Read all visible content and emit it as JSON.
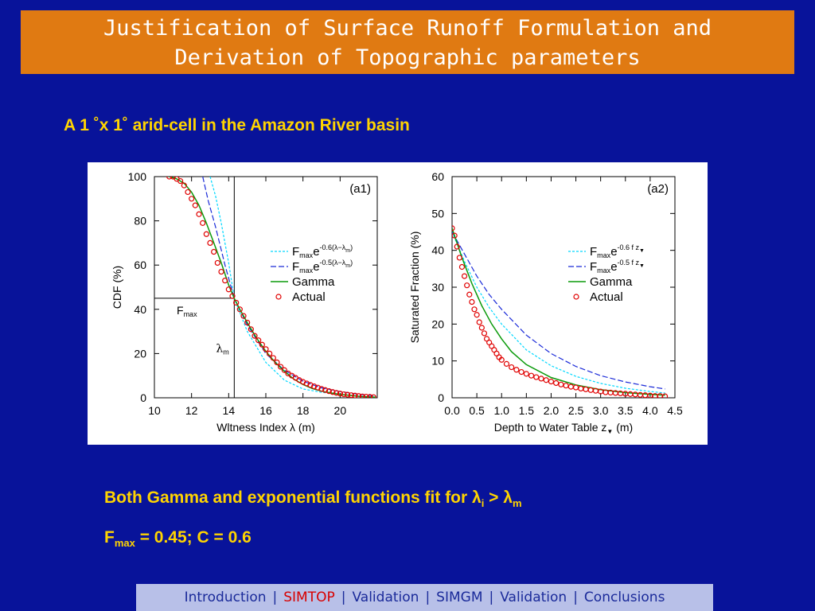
{
  "title": {
    "line1": "Justification of Surface Runoff Formulation and",
    "line2": "Derivation of Topographic parameters"
  },
  "subtitle": "A 1 ˚x 1˚ arid-cell in the Amazon River basin",
  "notes": {
    "line1_prefix": "Both Gamma and exponential functions fit for λ",
    "line1_sub1": "i",
    "line1_mid": " > λ",
    "line1_sub2": "m",
    "line2_prefix": "F",
    "line2_sub": "max",
    "line2_suffix": " = 0.45; C = 0.6"
  },
  "nav": {
    "items": [
      "Introduction",
      "SIMTOP",
      "Validation",
      "SIMGM",
      "Validation",
      "Conclusions"
    ],
    "active_index": 1,
    "separator": "|"
  },
  "colors": {
    "background": "#08139a",
    "title_bar": "#e07a12",
    "accent_text": "#ffd400",
    "exp06": "#00d8ff",
    "exp05": "#1a2ad8",
    "gamma": "#0a9a0a",
    "actual": "#e00000"
  },
  "chart_data": [
    {
      "type": "line",
      "panel_label": "(a1)",
      "xlabel": "Wltness Index λ (m)",
      "ylabel": "CDF (%)",
      "xlim": [
        10,
        22
      ],
      "ylim": [
        0,
        100
      ],
      "xticks": [
        10,
        12,
        14,
        16,
        18,
        20
      ],
      "yticks": [
        0,
        20,
        40,
        60,
        80,
        100
      ],
      "grid": false,
      "legend_position": "center-right",
      "legend": [
        {
          "key": "exp06",
          "text": "F",
          "sub": "max",
          "tail": "e",
          "sup": "-0.6(λ−λ",
          "supsub": "m",
          "supend": ")"
        },
        {
          "key": "exp05",
          "text": "F",
          "sub": "max",
          "tail": "e",
          "sup": "-0.5(λ−λ",
          "supsub": "m",
          "supend": ")"
        },
        {
          "key": "gamma",
          "text": "Gamma"
        },
        {
          "key": "actual",
          "text": "Actual"
        }
      ],
      "annotations": {
        "fmax_label": "F",
        "fmax_sub": "max",
        "lambda_label": "λ",
        "lambda_sub": "m",
        "fmax_value": 45,
        "lambda_m": 14.3
      },
      "series": [
        {
          "name": "Fmaxe-0.6(λ−λm)",
          "key": "exp06",
          "x": [
            13.0,
            13.3,
            13.6,
            14.0,
            14.3,
            15.0,
            16.0,
            17.0,
            18.0,
            19.0,
            20.0,
            21.0,
            21.9
          ],
          "y": [
            100,
            91,
            79,
            61,
            45,
            30,
            16,
            8,
            4,
            2.5,
            1.5,
            0.8,
            0.4
          ]
        },
        {
          "name": "Fmaxe-0.5(λ−λm)",
          "key": "exp05",
          "x": [
            12.6,
            12.9,
            13.3,
            13.8,
            14.3,
            15.0,
            16.0,
            17.0,
            18.0,
            19.0,
            20.0,
            21.0,
            21.9
          ],
          "y": [
            100,
            89,
            77,
            60,
            45,
            33,
            20,
            12.5,
            7.5,
            4.5,
            2.8,
            1.6,
            0.9
          ]
        },
        {
          "name": "Gamma",
          "key": "gamma",
          "x": [
            10.8,
            11.2,
            11.6,
            12.0,
            12.4,
            12.8,
            13.2,
            13.6,
            14.0,
            14.3,
            14.6,
            15.0,
            15.5,
            16.0,
            16.5,
            17.0,
            17.5,
            18.0,
            18.5,
            19.0,
            19.5,
            20.0,
            21.0,
            21.9
          ],
          "y": [
            100,
            99,
            97,
            93,
            87,
            79,
            70,
            61,
            51,
            45,
            40,
            34,
            27,
            21,
            16,
            12,
            8.5,
            6,
            4.2,
            3,
            2.2,
            1.5,
            0.7,
            0.3
          ]
        },
        {
          "name": "Actual",
          "key": "actual",
          "x": [
            10.8,
            11.0,
            11.2,
            11.4,
            11.6,
            11.8,
            12.0,
            12.2,
            12.4,
            12.6,
            12.8,
            13.0,
            13.2,
            13.4,
            13.6,
            13.8,
            14.0,
            14.2,
            14.4,
            14.6,
            14.8,
            15.0,
            15.2,
            15.4,
            15.6,
            15.8,
            16.0,
            16.2,
            16.4,
            16.6,
            16.8,
            17.0,
            17.2,
            17.4,
            17.6,
            17.8,
            18.0,
            18.2,
            18.4,
            18.6,
            18.8,
            19.0,
            19.2,
            19.4,
            19.6,
            19.8,
            20.0,
            20.2,
            20.4,
            20.6,
            20.8,
            21.0,
            21.2,
            21.4,
            21.6,
            21.8
          ],
          "y": [
            100,
            100,
            99,
            98,
            96,
            93,
            90,
            87,
            83,
            79,
            74,
            70,
            66,
            61,
            57,
            53,
            49,
            46,
            43,
            40,
            37,
            34,
            31,
            28,
            26,
            24,
            22,
            20,
            18,
            16,
            14,
            12.5,
            11,
            10,
            9,
            8,
            7.2,
            6.5,
            5.8,
            5.2,
            4.6,
            4,
            3.5,
            3,
            2.6,
            2.2,
            1.9,
            1.6,
            1.4,
            1.2,
            1,
            0.8,
            0.6,
            0.5,
            0.4,
            0.3
          ]
        }
      ]
    },
    {
      "type": "line",
      "panel_label": "(a2)",
      "xlabel": "Depth to Water Table z",
      "xlabel_sub": "▼",
      "xlabel_tail": " (m)",
      "ylabel": "Saturated Fraction (%)",
      "xlim": [
        0,
        4.5
      ],
      "ylim": [
        0,
        60
      ],
      "xticks": [
        0.0,
        0.5,
        1.0,
        1.5,
        2.0,
        2.5,
        3.0,
        3.5,
        4.0,
        4.5
      ],
      "xtick_labels": [
        "0.0",
        "0.5",
        "1.0",
        "1.5",
        "2.0",
        "2.5",
        "3.0",
        "3.5",
        "4.0",
        "4.5"
      ],
      "yticks": [
        0,
        10,
        20,
        30,
        40,
        50,
        60
      ],
      "grid": false,
      "legend_position": "center-right",
      "legend": [
        {
          "key": "exp06",
          "text": "F",
          "sub": "max",
          "tail": "e",
          "sup": "-0.6 f z",
          "supsub": "▼",
          "supend": ""
        },
        {
          "key": "exp05",
          "text": "F",
          "sub": "max",
          "tail": "e",
          "sup": "-0.5 f z",
          "supsub": "▼",
          "supend": ""
        },
        {
          "key": "gamma",
          "text": "Gamma"
        },
        {
          "key": "actual",
          "text": "Actual"
        }
      ],
      "series": [
        {
          "name": "Fmaxe-0.6 f z",
          "key": "exp06",
          "x": [
            0,
            0.25,
            0.5,
            0.75,
            1.0,
            1.5,
            2.0,
            2.5,
            3.0,
            3.5,
            4.0,
            4.3
          ],
          "y": [
            45,
            37,
            30,
            24.5,
            20,
            13,
            8.7,
            5.8,
            3.9,
            2.6,
            1.7,
            1.3
          ]
        },
        {
          "name": "Fmaxe-0.5 f z",
          "key": "exp05",
          "x": [
            0,
            0.25,
            0.5,
            0.75,
            1.0,
            1.5,
            2.0,
            2.5,
            3.0,
            3.5,
            4.0,
            4.3
          ],
          "y": [
            45,
            39,
            33,
            28,
            24,
            17,
            12,
            8.5,
            6,
            4.3,
            3,
            2.4
          ]
        },
        {
          "name": "Gamma",
          "key": "gamma",
          "x": [
            0,
            0.1,
            0.2,
            0.3,
            0.4,
            0.5,
            0.6,
            0.8,
            1.0,
            1.2,
            1.5,
            2.0,
            2.5,
            3.0,
            3.5,
            4.0,
            4.3
          ],
          "y": [
            46,
            42,
            38,
            34.5,
            31,
            28,
            25,
            20,
            16,
            12.5,
            9,
            5.5,
            3.5,
            2.2,
            1.4,
            0.9,
            0.7
          ]
        },
        {
          "name": "Actual",
          "key": "actual",
          "x": [
            0,
            0.05,
            0.1,
            0.15,
            0.2,
            0.25,
            0.3,
            0.35,
            0.4,
            0.45,
            0.5,
            0.55,
            0.6,
            0.65,
            0.7,
            0.75,
            0.8,
            0.85,
            0.9,
            0.95,
            1.0,
            1.1,
            1.2,
            1.3,
            1.4,
            1.5,
            1.6,
            1.7,
            1.8,
            1.9,
            2.0,
            2.1,
            2.2,
            2.3,
            2.4,
            2.5,
            2.6,
            2.7,
            2.8,
            2.9,
            3.0,
            3.1,
            3.2,
            3.3,
            3.4,
            3.5,
            3.6,
            3.7,
            3.8,
            3.9,
            4.0,
            4.1,
            4.2,
            4.3
          ],
          "y": [
            46,
            44,
            41,
            38,
            35.5,
            33,
            30.5,
            28,
            26,
            24,
            22.5,
            20.5,
            19,
            17.5,
            16,
            15,
            14,
            13,
            12,
            11,
            10.3,
            9.2,
            8.3,
            7.6,
            7,
            6.5,
            6,
            5.6,
            5.2,
            4.8,
            4.4,
            4,
            3.6,
            3.3,
            3,
            2.8,
            2.5,
            2.3,
            2.1,
            1.9,
            1.7,
            1.5,
            1.4,
            1.3,
            1.2,
            1.1,
            1,
            0.9,
            0.8,
            0.7,
            0.6,
            0.5,
            0.5,
            0.4
          ]
        }
      ]
    }
  ]
}
